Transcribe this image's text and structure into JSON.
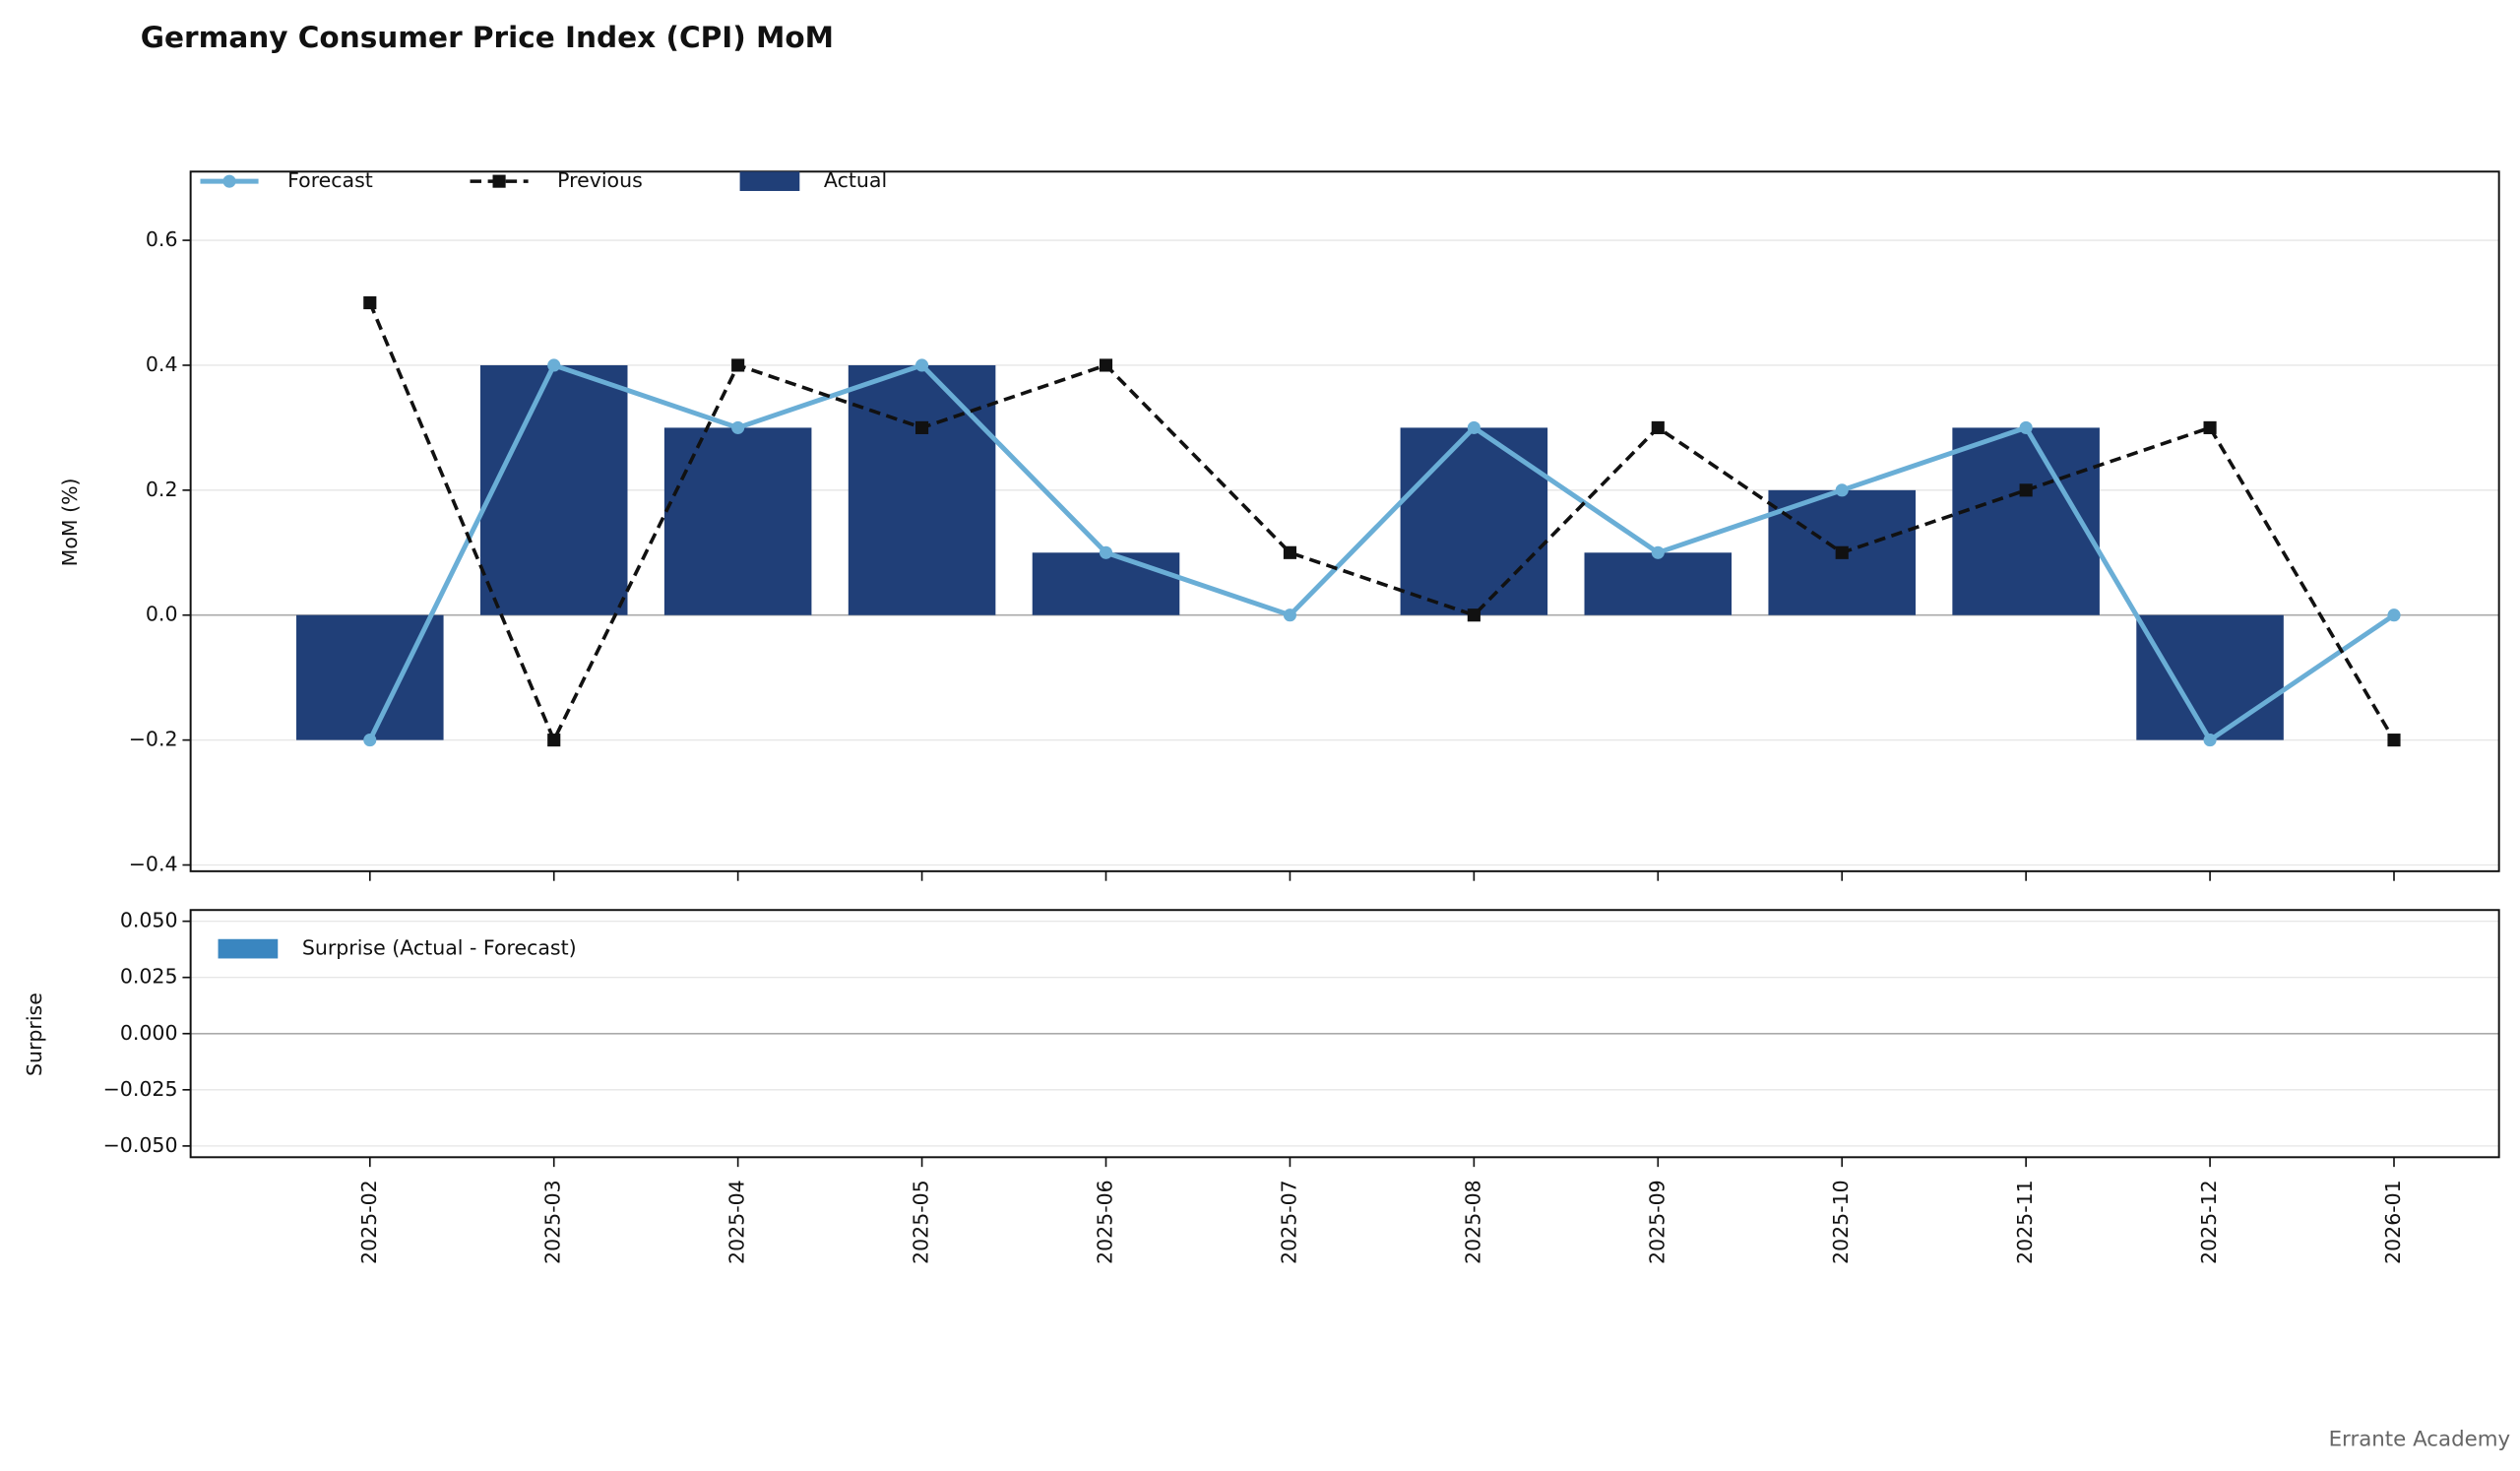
{
  "chart_data": [
    {
      "type": "bar_line",
      "title": "Germany Consumer Price Index (CPI) MoM",
      "ylabel": "MoM (%)",
      "categories": [
        "2025-02",
        "2025-03",
        "2025-04",
        "2025-05",
        "2025-06",
        "2025-07",
        "2025-08",
        "2025-09",
        "2025-10",
        "2025-11",
        "2025-12",
        "2026-01"
      ],
      "series": [
        {
          "name": "Forecast",
          "kind": "line",
          "marker": "circle",
          "color": "#6aaed6",
          "values": [
            -0.2,
            0.4,
            0.3,
            0.4,
            0.1,
            0.0,
            0.3,
            0.1,
            0.2,
            0.3,
            -0.2,
            0.0
          ]
        },
        {
          "name": "Previous",
          "kind": "line",
          "dash": true,
          "marker": "square",
          "color": "#111111",
          "values": [
            0.5,
            -0.2,
            0.4,
            0.3,
            0.4,
            0.1,
            0.0,
            0.3,
            0.1,
            0.2,
            0.3,
            -0.2
          ]
        },
        {
          "name": "Actual",
          "kind": "bar",
          "color": "#203f78",
          "values": [
            -0.2,
            0.4,
            0.3,
            0.4,
            0.1,
            null,
            0.3,
            0.1,
            0.2,
            0.3,
            -0.2,
            null
          ]
        }
      ],
      "ylim": [
        -0.41,
        0.71
      ],
      "yticks": [
        {
          "value": -0.4,
          "label": "−0.4"
        },
        {
          "value": -0.2,
          "label": "−0.2"
        },
        {
          "value": 0,
          "label": "0.0"
        },
        {
          "value": 0.2,
          "label": "0.2"
        },
        {
          "value": 0.4,
          "label": "0.4"
        },
        {
          "value": 0.6,
          "label": "0.6"
        }
      ],
      "grid": true,
      "legend": "upper left"
    },
    {
      "type": "bar",
      "ylabel": "Surprise",
      "series": [
        {
          "name": "Surprise (Actual - Forecast)",
          "kind": "bar",
          "color": "#3a86c0",
          "values": [
            0,
            0,
            0,
            0,
            0,
            null,
            0,
            0,
            0,
            0,
            0,
            null
          ]
        }
      ],
      "ylim": [
        -0.055,
        0.055
      ],
      "yticks": [
        {
          "value": -0.05,
          "label": "−0.050"
        },
        {
          "value": -0.025,
          "label": "−0.025"
        },
        {
          "value": 0,
          "label": "0.000"
        },
        {
          "value": 0.025,
          "label": "0.025"
        },
        {
          "value": 0.05,
          "label": "0.050"
        }
      ],
      "grid": true,
      "legend": "upper left"
    }
  ],
  "watermark": "Errante Academy"
}
